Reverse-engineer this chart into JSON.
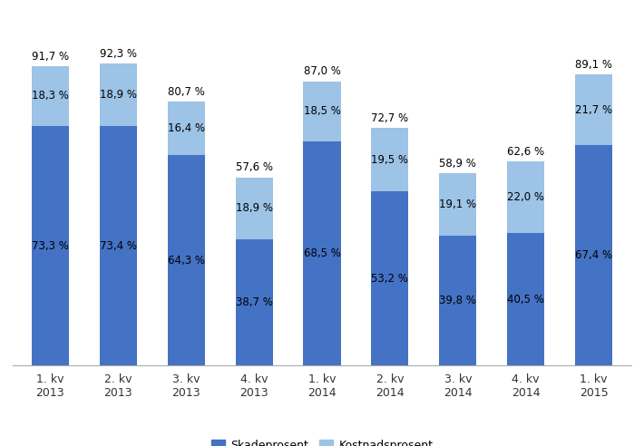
{
  "categories": [
    "1. kv\n2013",
    "2. kv\n2013",
    "3. kv\n2013",
    "4. kv\n2013",
    "1. kv\n2014",
    "2. kv\n2014",
    "3. kv\n2014",
    "4. kv\n2014",
    "1. kv\n2015"
  ],
  "skadeprosent": [
    73.3,
    73.4,
    64.3,
    38.7,
    68.5,
    53.2,
    39.8,
    40.5,
    67.4
  ],
  "kostnadsprosent": [
    18.3,
    18.9,
    16.4,
    18.9,
    18.5,
    19.5,
    19.1,
    22.0,
    21.7
  ],
  "skade_labels": [
    "73,3 %",
    "73,4 %",
    "64,3 %",
    "38,7 %",
    "68,5 %",
    "53,2 %",
    "39,8 %",
    "40,5 %",
    "67,4 %"
  ],
  "kostnad_labels": [
    "18,3 %",
    "18,9 %",
    "16,4 %",
    "18,9 %",
    "18,5 %",
    "19,5 %",
    "19,1 %",
    "22,0 %",
    "21,7 %"
  ],
  "total_labels": [
    "91,7 %",
    "92,3 %",
    "80,7 %",
    "57,6 %",
    "87,0 %",
    "72,7 %",
    "58,9 %",
    "62,6 %",
    "89,1 %"
  ],
  "color_skade": "#4472C4",
  "color_kostnad": "#9DC3E6",
  "legend_skade": "Skadeprosent",
  "legend_kostnad": "Kostnadsprosent",
  "ylim": [
    0,
    105
  ],
  "bar_width": 0.55,
  "background_color": "#ffffff",
  "label_fontsize": 8.5,
  "tick_fontsize": 9,
  "legend_fontsize": 9
}
